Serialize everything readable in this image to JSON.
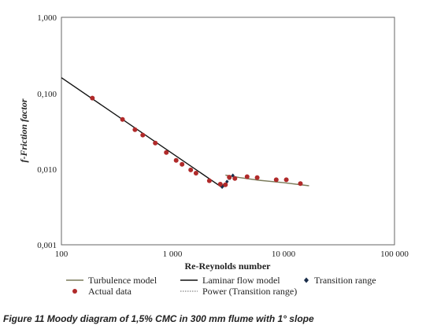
{
  "chart_data": {
    "type": "scatter",
    "title": "",
    "xlabel": "Re-Reynolds number",
    "ylabel": "f-Friction factor",
    "xscale": "log",
    "yscale": "log",
    "xlim": [
      100,
      100000
    ],
    "ylim": [
      0.001,
      1
    ],
    "x_ticks": [
      100,
      1000,
      10000,
      100000
    ],
    "x_tick_labels": [
      "100",
      "1 000",
      "10 000",
      "100 000"
    ],
    "y_ticks": [
      0.001,
      0.01,
      0.1,
      1
    ],
    "y_tick_labels": [
      "0,001",
      "0,010",
      "0,100",
      "1,000"
    ],
    "grid": false,
    "legend_position": "bottom",
    "series": [
      {
        "name": "Turbulence model",
        "kind": "line",
        "color": "#7a7a5a",
        "x": [
          3000,
          4000,
          6000,
          10000,
          17000
        ],
        "y": [
          0.0083,
          0.0077,
          0.0071,
          0.0066,
          0.006
        ]
      },
      {
        "name": "Laminar flow model",
        "kind": "line",
        "color": "#111111",
        "x": [
          100,
          2850
        ],
        "y": [
          0.16,
          0.0056
        ]
      },
      {
        "name": "Transition range",
        "kind": "points",
        "color": "#1a2d4a",
        "x": [
          2800,
          2900,
          3100,
          3300,
          3500
        ],
        "y": [
          0.0058,
          0.0061,
          0.0068,
          0.0076,
          0.0082
        ]
      },
      {
        "name": "Actual data",
        "kind": "points",
        "color": "#b02a2a",
        "x": [
          190,
          355,
          460,
          540,
          700,
          880,
          1080,
          1220,
          1460,
          1630,
          2150,
          2700,
          3000,
          3250,
          3650,
          4700,
          5800,
          8600,
          10600,
          14200
        ],
        "y": [
          0.086,
          0.045,
          0.033,
          0.028,
          0.022,
          0.0165,
          0.013,
          0.0115,
          0.0097,
          0.0088,
          0.007,
          0.0063,
          0.0062,
          0.0078,
          0.0075,
          0.0079,
          0.0077,
          0.0072,
          0.0072,
          0.0064
        ]
      },
      {
        "name": "Power (Transition range)",
        "kind": "dotted-line",
        "color": "#666666",
        "x": [
          2800,
          3500
        ],
        "y": [
          0.0058,
          0.0082
        ]
      }
    ]
  },
  "caption": "Figure 11 Moody diagram of 1,5% CMC in 300 mm flume with 1° slope"
}
